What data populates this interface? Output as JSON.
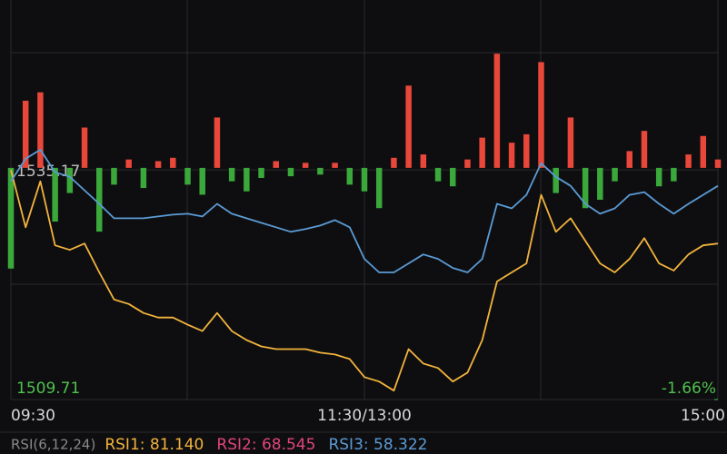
{
  "chart_data": {
    "type": "line",
    "x": [
      0,
      5,
      10,
      15,
      20,
      25,
      30,
      35,
      40,
      45,
      50,
      55,
      60,
      65,
      70,
      75,
      80,
      85,
      90,
      95,
      100,
      105,
      110,
      115,
      120,
      125,
      130,
      135,
      140,
      145,
      150,
      155,
      160,
      165,
      170,
      175,
      180,
      185,
      190,
      195,
      200,
      205,
      210,
      215,
      220,
      225,
      230,
      235,
      240
    ],
    "xlim": [
      0,
      240
    ],
    "xticks": [
      {
        "value": 0,
        "label": "09:30"
      },
      {
        "value": 120,
        "label": "11:30/13:00"
      },
      {
        "value": 240,
        "label": "15:00"
      }
    ],
    "ylim": [
      1509.71,
      1554.0
    ],
    "yticks": [
      1509.71,
      1535.17
    ],
    "pct_ticks": [
      {
        "value": 1509.71,
        "label": "-1.66%"
      }
    ],
    "series": [
      {
        "color": "#f2b33d",
        "values": [
          1535.17,
          1528.8,
          1533.9,
          1526.8,
          1526.3,
          1527.0,
          1523.8,
          1520.8,
          1520.3,
          1519.3,
          1518.8,
          1518.8,
          1518.0,
          1517.3,
          1519.3,
          1517.3,
          1516.3,
          1515.6,
          1515.3,
          1515.3,
          1515.3,
          1514.9,
          1514.7,
          1514.2,
          1512.2,
          1511.7,
          1510.7,
          1515.3,
          1513.7,
          1513.2,
          1511.7,
          1512.7,
          1516.3,
          1522.8,
          1523.8,
          1524.8,
          1532.4,
          1528.3,
          1529.8,
          1527.3,
          1524.8,
          1523.8,
          1525.3,
          1527.6,
          1524.8,
          1524.0,
          1525.8,
          1526.8,
          1527.0
        ]
      },
      {
        "color": "#5b9bd5",
        "values": [
          1533.9,
          1536.4,
          1537.4,
          1534.9,
          1534.4,
          1532.9,
          1531.4,
          1529.8,
          1529.8,
          1529.8,
          1530.0,
          1530.2,
          1530.3,
          1530.0,
          1531.4,
          1530.3,
          1529.8,
          1529.3,
          1528.8,
          1528.3,
          1528.6,
          1529.0,
          1529.6,
          1528.8,
          1525.3,
          1523.8,
          1523.8,
          1524.8,
          1525.8,
          1525.3,
          1524.3,
          1523.8,
          1525.3,
          1531.4,
          1530.9,
          1532.4,
          1535.9,
          1534.4,
          1533.4,
          1531.4,
          1530.3,
          1530.9,
          1532.4,
          1532.7,
          1531.4,
          1530.3,
          1531.4,
          1532.4,
          1533.4
        ]
      }
    ],
    "bars": {
      "axis": "y2",
      "up_color": "#e8473a",
      "down_color": "#3aa83a",
      "values": [
        -60,
        40,
        45,
        -32,
        -15,
        24,
        -38,
        -10,
        5,
        -12,
        4,
        6,
        -10,
        -16,
        30,
        -8,
        -14,
        -6,
        4,
        -5,
        3,
        -4,
        3,
        -10,
        -14,
        -24,
        6,
        49,
        8,
        -8,
        -11,
        5,
        18,
        68,
        15,
        20,
        63,
        -15,
        30,
        -24,
        -19,
        -8,
        10,
        22,
        -11,
        -8,
        8,
        19,
        5
      ]
    },
    "y2lim": [
      -138,
      100
    ],
    "grid": true,
    "footer": {
      "indicator": {
        "text": "RSI(6,12,24)",
        "color": "#888888"
      },
      "readings": [
        {
          "text": "RSI1: 81.140",
          "color": "#f2b33d"
        },
        {
          "text": "RSI2: 68.545",
          "color": "#e0457b"
        },
        {
          "text": "RSI3: 58.322",
          "color": "#5b9bd5"
        }
      ]
    }
  }
}
